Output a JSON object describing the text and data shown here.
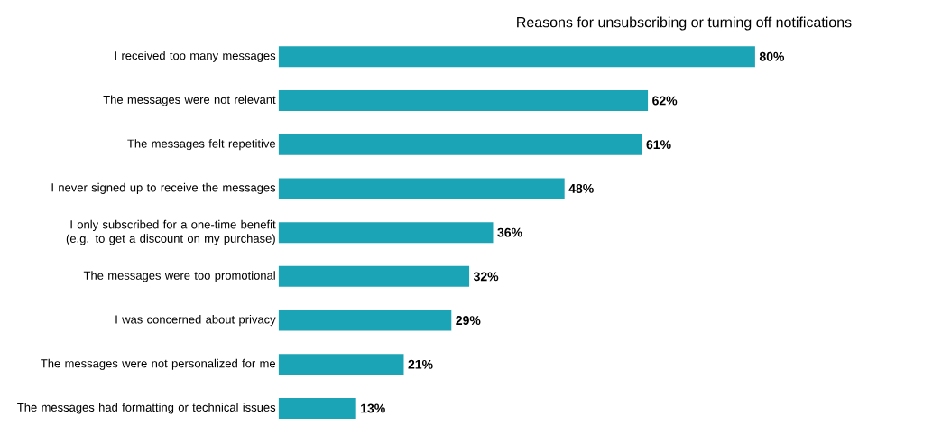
{
  "chart_data": {
    "type": "bar",
    "orientation": "horizontal",
    "title": "Reasons for unsubscribing or turning off notifications",
    "categories": [
      "I received too many messages",
      "The messages were not relevant",
      "The messages felt repetitive",
      "I never signed up to receive the messages",
      "I only subscribed for a one-time benefit (e.g. to get a discount on my purchase)",
      "The messages were too promotional",
      "I was concerned about privacy",
      "The messages were not personalized for me",
      "The messages had formatting or technical issues"
    ],
    "values": [
      80,
      62,
      61,
      48,
      36,
      32,
      29,
      21,
      13
    ],
    "value_labels": [
      "80%",
      "62%",
      "61%",
      "48%",
      "36%",
      "32%",
      "29%",
      "21%",
      "13%"
    ],
    "color": "#1ba3b6"
  }
}
